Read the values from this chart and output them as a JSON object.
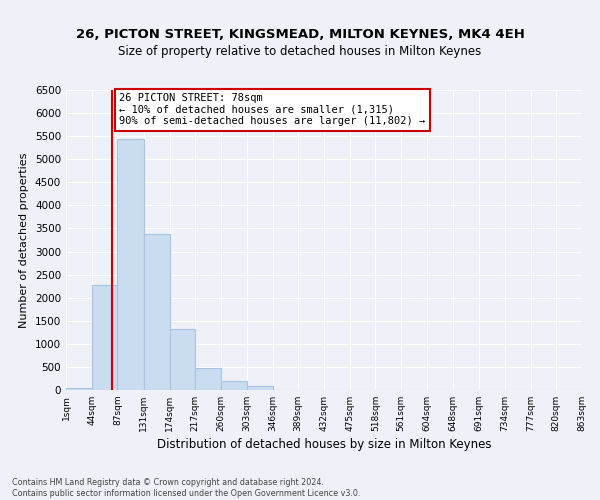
{
  "title": "26, PICTON STREET, KINGSMEAD, MILTON KEYNES, MK4 4EH",
  "subtitle": "Size of property relative to detached houses in Milton Keynes",
  "xlabel": "Distribution of detached houses by size in Milton Keynes",
  "ylabel": "Number of detached properties",
  "bar_values": [
    50,
    2280,
    5430,
    3380,
    1320,
    480,
    185,
    95,
    0,
    0,
    0,
    0,
    0,
    0,
    0,
    0,
    0,
    0,
    0,
    0
  ],
  "bar_edges": [
    1,
    44,
    87,
    131,
    174,
    217,
    260,
    303,
    346,
    389,
    432,
    475,
    518,
    561,
    604,
    648,
    691,
    734,
    777,
    820,
    863
  ],
  "tick_labels": [
    "1sqm",
    "44sqm",
    "87sqm",
    "131sqm",
    "174sqm",
    "217sqm",
    "260sqm",
    "303sqm",
    "346sqm",
    "389sqm",
    "432sqm",
    "475sqm",
    "518sqm",
    "561sqm",
    "604sqm",
    "648sqm",
    "691sqm",
    "734sqm",
    "777sqm",
    "820sqm",
    "863sqm"
  ],
  "ylim": [
    0,
    6500
  ],
  "yticks": [
    0,
    500,
    1000,
    1500,
    2000,
    2500,
    3000,
    3500,
    4000,
    4500,
    5000,
    5500,
    6000,
    6500
  ],
  "bar_color": "#c9dcf0",
  "bar_edge_color": "#a8c4e0",
  "property_line_x": 78,
  "property_line_color": "#cc0000",
  "annotation_title": "26 PICTON STREET: 78sqm",
  "annotation_line1": "← 10% of detached houses are smaller (1,315)",
  "annotation_line2": "90% of semi-detached houses are larger (11,802) →",
  "annotation_box_facecolor": "#ffffff",
  "annotation_box_edgecolor": "#cc0000",
  "footer_line1": "Contains HM Land Registry data © Crown copyright and database right 2024.",
  "footer_line2": "Contains public sector information licensed under the Open Government Licence v3.0.",
  "background_color": "#eef2f8",
  "grid_color": "#ffffff",
  "title_fontsize": 9.5,
  "subtitle_fontsize": 8.5,
  "ylabel_fontsize": 8.0,
  "xlabel_fontsize": 8.5,
  "ytick_fontsize": 7.5,
  "xtick_fontsize": 6.5,
  "footer_fontsize": 5.8
}
